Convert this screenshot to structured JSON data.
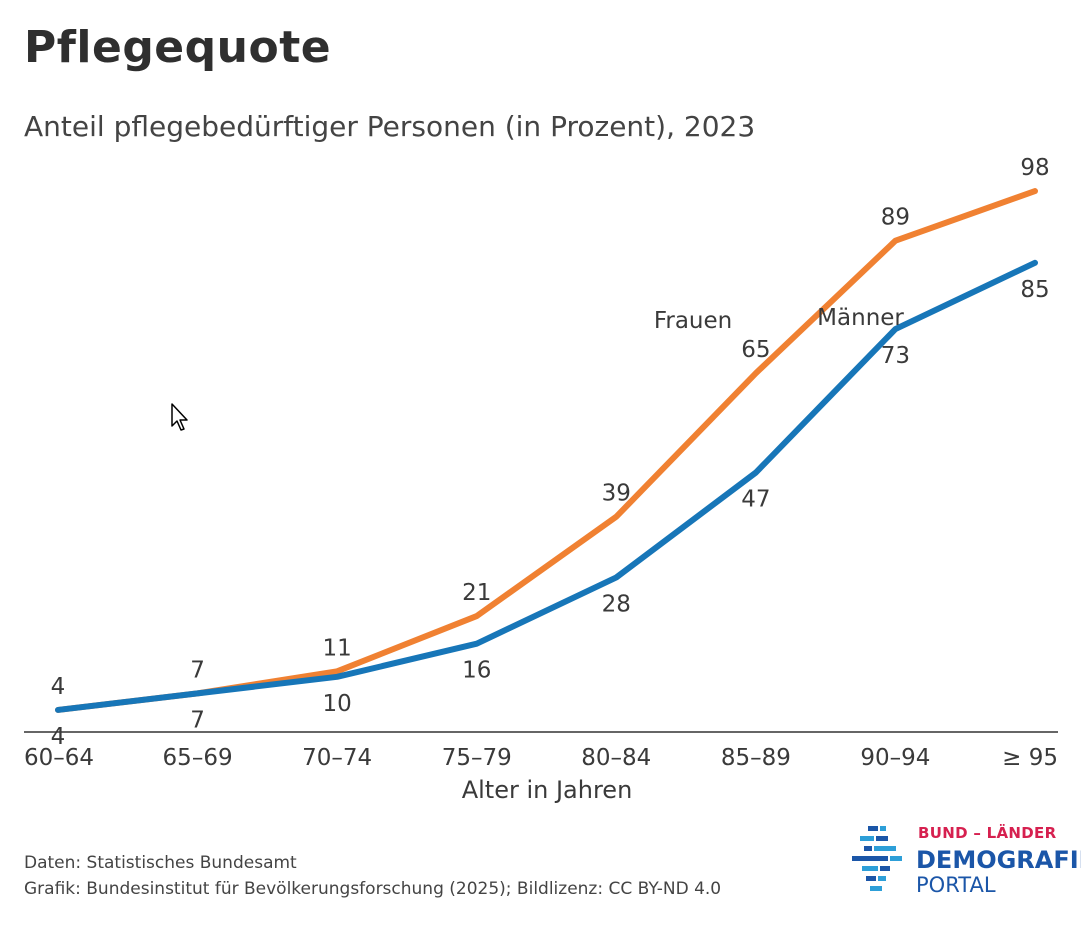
{
  "header": {
    "title": "Pflegequote",
    "subtitle": "Anteil pflegebedürftiger Personen (in Prozent), 2023"
  },
  "chart_data": {
    "type": "line",
    "title": "Pflegequote",
    "subtitle": "Anteil pflegebedürftiger Personen (in Prozent), 2023",
    "xlabel": "Alter in Jahren",
    "ylabel": "",
    "categories": [
      "60–64",
      "65–69",
      "70–74",
      "75–79",
      "80–84",
      "85–89",
      "90–94",
      "≥ 95"
    ],
    "ylim": [
      0,
      100
    ],
    "grid": false,
    "legend": "inline labels",
    "series": [
      {
        "name": "Frauen",
        "color": "#f08132",
        "values": [
          4,
          7,
          11,
          21,
          39,
          65,
          89,
          98
        ]
      },
      {
        "name": "Männer",
        "color": "#1776b8",
        "values": [
          4,
          7,
          10,
          16,
          28,
          47,
          73,
          85
        ]
      }
    ]
  },
  "footer": {
    "source": "Daten: Statistisches Bundesamt",
    "credit": "Grafik: Bundesinstitut für Bevölkerungsforschung (2025); Bildlizenz: CC BY-ND 4.0"
  },
  "logo": {
    "line1": "BUND – LÄNDER",
    "line2": "DEMOGRAFIE",
    "line3": "PORTAL"
  }
}
